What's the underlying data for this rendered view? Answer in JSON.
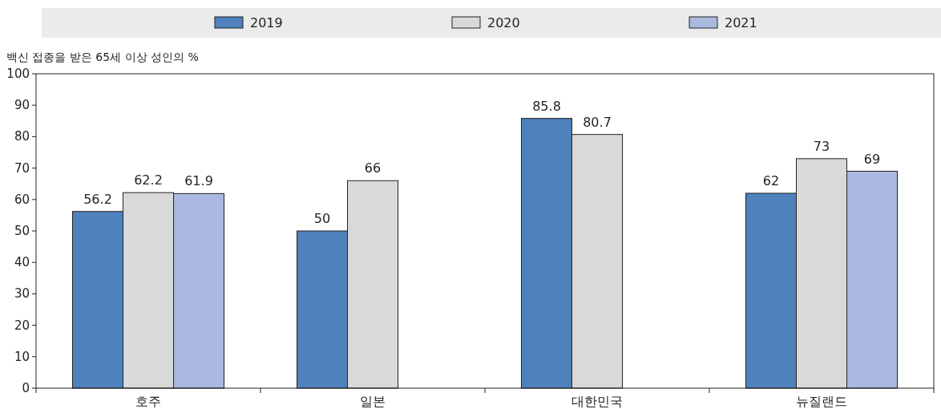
{
  "chart_data": {
    "type": "bar",
    "ylabel": "백신 접종을 받은 65세 이상 성인의 %",
    "categories": [
      "호주",
      "일본",
      "대한민국",
      "뉴질랜드"
    ],
    "series": [
      {
        "name": "2019",
        "color": "#4f81bd",
        "values": [
          56.2,
          50,
          85.8,
          62
        ]
      },
      {
        "name": "2020",
        "color": "#d9d9d9",
        "values": [
          62.2,
          66,
          80.7,
          73
        ]
      },
      {
        "name": "2021",
        "color": "#a9b9e0",
        "values": [
          61.9,
          null,
          null,
          69
        ]
      }
    ],
    "ylim": [
      0,
      100
    ],
    "yticks": [
      0,
      10,
      20,
      30,
      40,
      50,
      60,
      70,
      80,
      90,
      100
    ],
    "data_labels": true,
    "legend": "top",
    "grid": false
  }
}
